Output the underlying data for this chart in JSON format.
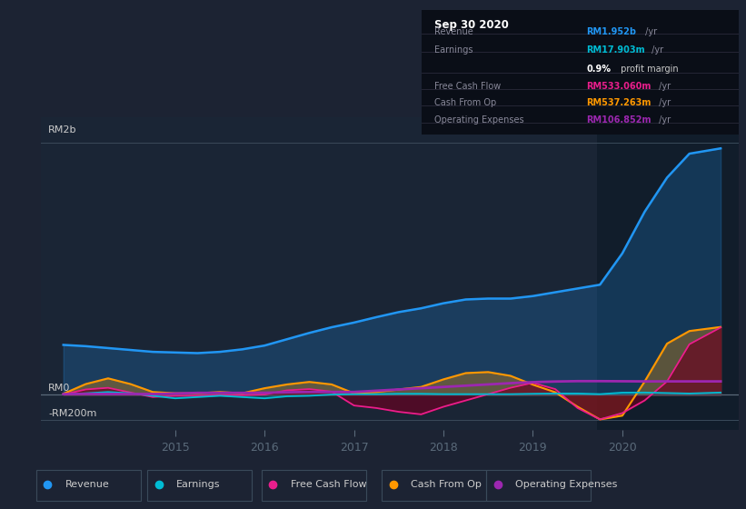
{
  "bg_color": "#1c2333",
  "chart_bg": "#1a2535",
  "highlight_bg": "#111d2b",
  "axis_label_color": "#aaaaaa",
  "grid_color": "#2a3a4a",
  "info_box_bg": "#0a0e17",
  "info_box_title": "Sep 30 2020",
  "x_ticks": [
    2015,
    2016,
    2017,
    2018,
    2019,
    2020
  ],
  "x_min": 2013.5,
  "x_max": 2021.3,
  "y_min": -280,
  "y_max": 2200,
  "highlight_x_start": 2019.72,
  "revenue_color": "#2196f3",
  "earnings_color": "#00bcd4",
  "fcf_color": "#e91e8c",
  "cashfromop_color": "#ff9800",
  "opex_color": "#9c27b0",
  "legend": [
    {
      "label": "Revenue",
      "color": "#2196f3"
    },
    {
      "label": "Earnings",
      "color": "#00bcd4"
    },
    {
      "label": "Free Cash Flow",
      "color": "#e91e8c"
    },
    {
      "label": "Cash From Op",
      "color": "#ff9800"
    },
    {
      "label": "Operating Expenses",
      "color": "#9c27b0"
    }
  ],
  "revenue_x": [
    2013.75,
    2014.0,
    2014.25,
    2014.5,
    2014.75,
    2015.0,
    2015.25,
    2015.5,
    2015.75,
    2016.0,
    2016.25,
    2016.5,
    2016.75,
    2017.0,
    2017.25,
    2017.5,
    2017.75,
    2018.0,
    2018.25,
    2018.5,
    2018.75,
    2019.0,
    2019.25,
    2019.5,
    2019.75,
    2020.0,
    2020.25,
    2020.5,
    2020.75,
    2021.1
  ],
  "revenue_y": [
    395,
    385,
    370,
    355,
    340,
    335,
    330,
    340,
    360,
    390,
    440,
    490,
    535,
    572,
    615,
    655,
    685,
    725,
    755,
    762,
    762,
    782,
    812,
    842,
    872,
    1120,
    1450,
    1720,
    1910,
    1952
  ],
  "earnings_x": [
    2013.75,
    2014.0,
    2014.25,
    2014.5,
    2014.75,
    2015.0,
    2015.25,
    2015.5,
    2015.75,
    2016.0,
    2016.25,
    2016.5,
    2016.75,
    2017.0,
    2017.25,
    2017.5,
    2017.75,
    2018.0,
    2018.25,
    2018.5,
    2018.75,
    2019.0,
    2019.25,
    2019.5,
    2019.75,
    2020.0,
    2020.25,
    2020.5,
    2020.75,
    2021.1
  ],
  "earnings_y": [
    2,
    12,
    22,
    12,
    -8,
    -28,
    -18,
    -8,
    -18,
    -28,
    -12,
    -8,
    2,
    5,
    5,
    8,
    8,
    5,
    5,
    5,
    5,
    8,
    10,
    10,
    5,
    17,
    17.9,
    14,
    10,
    17.9
  ],
  "fcf_x": [
    2013.75,
    2014.0,
    2014.25,
    2014.5,
    2014.75,
    2015.0,
    2015.25,
    2015.5,
    2015.75,
    2016.0,
    2016.25,
    2016.5,
    2016.75,
    2017.0,
    2017.25,
    2017.5,
    2017.75,
    2018.0,
    2018.25,
    2018.5,
    2018.75,
    2019.0,
    2019.25,
    2019.5,
    2019.75,
    2020.0,
    2020.25,
    2020.5,
    2020.75,
    2021.1
  ],
  "fcf_y": [
    2,
    42,
    55,
    18,
    -18,
    -8,
    -8,
    -3,
    -3,
    2,
    35,
    45,
    25,
    -85,
    -105,
    -135,
    -155,
    -95,
    -45,
    5,
    55,
    95,
    45,
    -105,
    -195,
    -145,
    -45,
    105,
    400,
    533
  ],
  "cashop_x": [
    2013.75,
    2014.0,
    2014.25,
    2014.5,
    2014.75,
    2015.0,
    2015.25,
    2015.5,
    2015.75,
    2016.0,
    2016.25,
    2016.5,
    2016.75,
    2017.0,
    2017.25,
    2017.5,
    2017.75,
    2018.0,
    2018.25,
    2018.5,
    2018.75,
    2019.0,
    2019.25,
    2019.5,
    2019.75,
    2020.0,
    2020.25,
    2020.5,
    2020.75,
    2021.1
  ],
  "cashop_y": [
    8,
    85,
    130,
    85,
    22,
    12,
    12,
    22,
    12,
    52,
    82,
    102,
    82,
    12,
    22,
    42,
    62,
    122,
    172,
    180,
    150,
    80,
    20,
    -95,
    -195,
    -165,
    105,
    405,
    505,
    537
  ],
  "opex_x": [
    2013.75,
    2014.0,
    2014.25,
    2014.5,
    2014.75,
    2015.0,
    2015.25,
    2015.5,
    2015.75,
    2016.0,
    2016.25,
    2016.5,
    2016.75,
    2017.0,
    2017.25,
    2017.5,
    2017.75,
    2018.0,
    2018.25,
    2018.5,
    2018.75,
    2019.0,
    2019.25,
    2019.5,
    2019.75,
    2020.0,
    2020.25,
    2020.5,
    2020.75,
    2021.1
  ],
  "opex_y": [
    5,
    6,
    6,
    6,
    6,
    10,
    15,
    15,
    15,
    16,
    20,
    22,
    22,
    22,
    32,
    42,
    52,
    62,
    72,
    82,
    92,
    100,
    105,
    108,
    108,
    107,
    106,
    106,
    106,
    106
  ]
}
